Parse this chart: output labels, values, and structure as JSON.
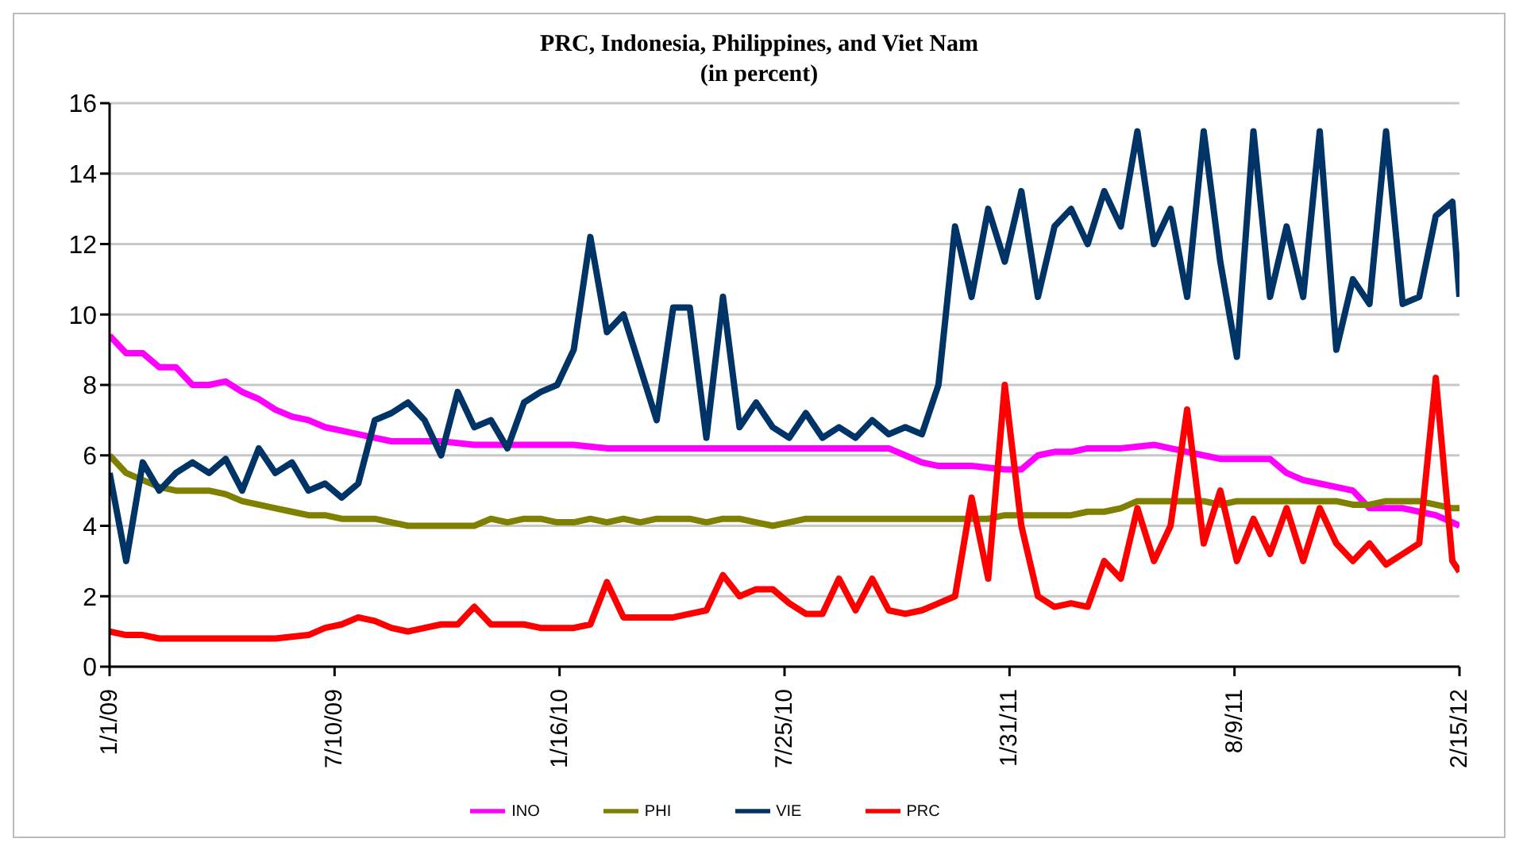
{
  "chart_data": {
    "type": "line",
    "title": "PRC, Indonesia, Philippines, and Viet Nam",
    "subtitle": "(in percent)",
    "x": [
      "2009-01-01",
      "2009-01-15",
      "2009-01-29",
      "2009-02-12",
      "2009-02-26",
      "2009-03-12",
      "2009-03-26",
      "2009-04-09",
      "2009-04-23",
      "2009-05-07",
      "2009-05-21",
      "2009-06-04",
      "2009-06-18",
      "2009-07-02",
      "2009-07-16",
      "2009-07-30",
      "2009-08-13",
      "2009-08-27",
      "2009-09-10",
      "2009-09-24",
      "2009-10-08",
      "2009-10-22",
      "2009-11-05",
      "2009-11-19",
      "2009-12-03",
      "2009-12-17",
      "2009-12-31",
      "2010-01-14",
      "2010-01-28",
      "2010-02-11",
      "2010-02-25",
      "2010-03-11",
      "2010-03-25",
      "2010-04-08",
      "2010-04-22",
      "2010-05-06",
      "2010-05-20",
      "2010-06-03",
      "2010-06-17",
      "2010-07-01",
      "2010-07-15",
      "2010-07-29",
      "2010-08-12",
      "2010-08-26",
      "2010-09-09",
      "2010-09-23",
      "2010-10-07",
      "2010-10-21",
      "2010-11-04",
      "2010-11-18",
      "2010-12-02",
      "2010-12-16",
      "2010-12-30",
      "2011-01-13",
      "2011-01-27",
      "2011-02-10",
      "2011-02-24",
      "2011-03-10",
      "2011-03-24",
      "2011-04-07",
      "2011-04-21",
      "2011-05-05",
      "2011-05-19",
      "2011-06-02",
      "2011-06-16",
      "2011-06-30",
      "2011-07-14",
      "2011-07-28",
      "2011-08-11",
      "2011-08-25",
      "2011-09-08",
      "2011-09-22",
      "2011-10-06",
      "2011-10-20",
      "2011-11-03",
      "2011-11-17",
      "2011-12-01",
      "2011-12-15",
      "2011-12-29",
      "2012-01-12",
      "2012-01-26",
      "2012-02-09",
      "2012-02-15"
    ],
    "series": [
      {
        "name": "INO",
        "color": "#ff00ff",
        "values": [
          9.4,
          8.9,
          8.9,
          8.5,
          8.5,
          8.0,
          8.0,
          8.1,
          7.8,
          7.6,
          7.3,
          7.1,
          7.0,
          6.8,
          6.7,
          6.6,
          6.5,
          6.4,
          6.4,
          6.4,
          6.4,
          6.35,
          6.3,
          6.3,
          6.3,
          6.3,
          6.3,
          6.3,
          6.3,
          6.25,
          6.2,
          6.2,
          6.2,
          6.2,
          6.2,
          6.2,
          6.2,
          6.2,
          6.2,
          6.2,
          6.2,
          6.2,
          6.2,
          6.2,
          6.2,
          6.2,
          6.2,
          6.2,
          6.0,
          5.8,
          5.7,
          5.7,
          5.7,
          5.65,
          5.6,
          5.6,
          6.0,
          6.1,
          6.1,
          6.2,
          6.2,
          6.2,
          6.25,
          6.3,
          6.2,
          6.1,
          6.0,
          5.9,
          5.9,
          5.9,
          5.9,
          5.5,
          5.3,
          5.2,
          5.1,
          5.0,
          4.5,
          4.5,
          4.5,
          4.4,
          4.3,
          4.1,
          4.0
        ]
      },
      {
        "name": "PHI",
        "color": "#808000",
        "values": [
          6.0,
          5.5,
          5.3,
          5.1,
          5.0,
          5.0,
          5.0,
          4.9,
          4.7,
          4.6,
          4.5,
          4.4,
          4.3,
          4.3,
          4.2,
          4.2,
          4.2,
          4.1,
          4.0,
          4.0,
          4.0,
          4.0,
          4.0,
          4.2,
          4.1,
          4.2,
          4.2,
          4.1,
          4.1,
          4.2,
          4.1,
          4.2,
          4.1,
          4.2,
          4.2,
          4.2,
          4.1,
          4.2,
          4.2,
          4.1,
          4.0,
          4.1,
          4.2,
          4.2,
          4.2,
          4.2,
          4.2,
          4.2,
          4.2,
          4.2,
          4.2,
          4.2,
          4.2,
          4.2,
          4.3,
          4.3,
          4.3,
          4.3,
          4.3,
          4.4,
          4.4,
          4.5,
          4.7,
          4.7,
          4.7,
          4.7,
          4.7,
          4.6,
          4.7,
          4.7,
          4.7,
          4.7,
          4.7,
          4.7,
          4.7,
          4.6,
          4.6,
          4.7,
          4.7,
          4.7,
          4.6,
          4.5,
          4.5
        ]
      },
      {
        "name": "VIE",
        "color": "#003366",
        "values": [
          5.5,
          3.0,
          5.8,
          5.0,
          5.5,
          5.8,
          5.5,
          5.9,
          5.0,
          6.2,
          5.5,
          5.8,
          5.0,
          5.2,
          4.8,
          5.2,
          7.0,
          7.2,
          7.5,
          7.0,
          6.0,
          7.8,
          6.8,
          7.0,
          6.2,
          7.5,
          7.8,
          8.0,
          9.0,
          12.2,
          9.5,
          10.0,
          8.5,
          7.0,
          10.2,
          10.2,
          6.5,
          10.5,
          6.8,
          7.5,
          6.8,
          6.5,
          7.2,
          6.5,
          6.8,
          6.5,
          7.0,
          6.6,
          6.8,
          6.6,
          8.0,
          12.5,
          10.5,
          13.0,
          11.5,
          13.5,
          10.5,
          12.5,
          13.0,
          12.0,
          13.5,
          12.5,
          15.2,
          12.0,
          13.0,
          10.5,
          15.2,
          11.5,
          8.8,
          15.2,
          10.5,
          12.5,
          10.5,
          15.2,
          9.0,
          11.0,
          10.3,
          15.2,
          10.3,
          10.5,
          12.8,
          13.2,
          10.5
        ]
      },
      {
        "name": "PRC",
        "color": "#ff0000",
        "values": [
          1.0,
          0.9,
          0.9,
          0.8,
          0.8,
          0.8,
          0.8,
          0.8,
          0.8,
          0.8,
          0.8,
          0.85,
          0.9,
          1.1,
          1.2,
          1.4,
          1.3,
          1.1,
          1.0,
          1.1,
          1.2,
          1.2,
          1.7,
          1.2,
          1.2,
          1.2,
          1.1,
          1.1,
          1.1,
          1.2,
          2.4,
          1.4,
          1.4,
          1.4,
          1.4,
          1.5,
          1.6,
          2.6,
          2.0,
          2.2,
          2.2,
          1.8,
          1.5,
          1.5,
          2.5,
          1.6,
          2.5,
          1.6,
          1.5,
          1.6,
          1.8,
          2.0,
          4.8,
          2.5,
          8.0,
          4.0,
          2.0,
          1.7,
          1.8,
          1.7,
          3.0,
          2.5,
          4.5,
          3.0,
          4.0,
          7.3,
          3.5,
          5.0,
          3.0,
          4.2,
          3.2,
          4.5,
          3.0,
          4.5,
          3.5,
          3.0,
          3.5,
          2.9,
          3.2,
          3.5,
          8.2,
          3.0,
          2.7
        ]
      }
    ],
    "xlim": [
      "2009-01-01",
      "2012-02-15"
    ],
    "xticks": [
      {
        "value": "2009-01-01",
        "label": "1/1/09"
      },
      {
        "value": "2009-07-10",
        "label": "7/10/09"
      },
      {
        "value": "2010-01-16",
        "label": "1/16/10"
      },
      {
        "value": "2010-07-25",
        "label": "7/25/10"
      },
      {
        "value": "2011-01-31",
        "label": "1/31/11"
      },
      {
        "value": "2011-08-09",
        "label": "8/9/11"
      },
      {
        "value": "2012-02-15",
        "label": "2/15/12"
      }
    ],
    "ylim": [
      0,
      16
    ],
    "yticks": [
      0,
      2,
      4,
      6,
      8,
      10,
      12,
      14,
      16
    ],
    "grid": "y",
    "legend": "bottom",
    "marker": "none",
    "line_style": "solid"
  }
}
